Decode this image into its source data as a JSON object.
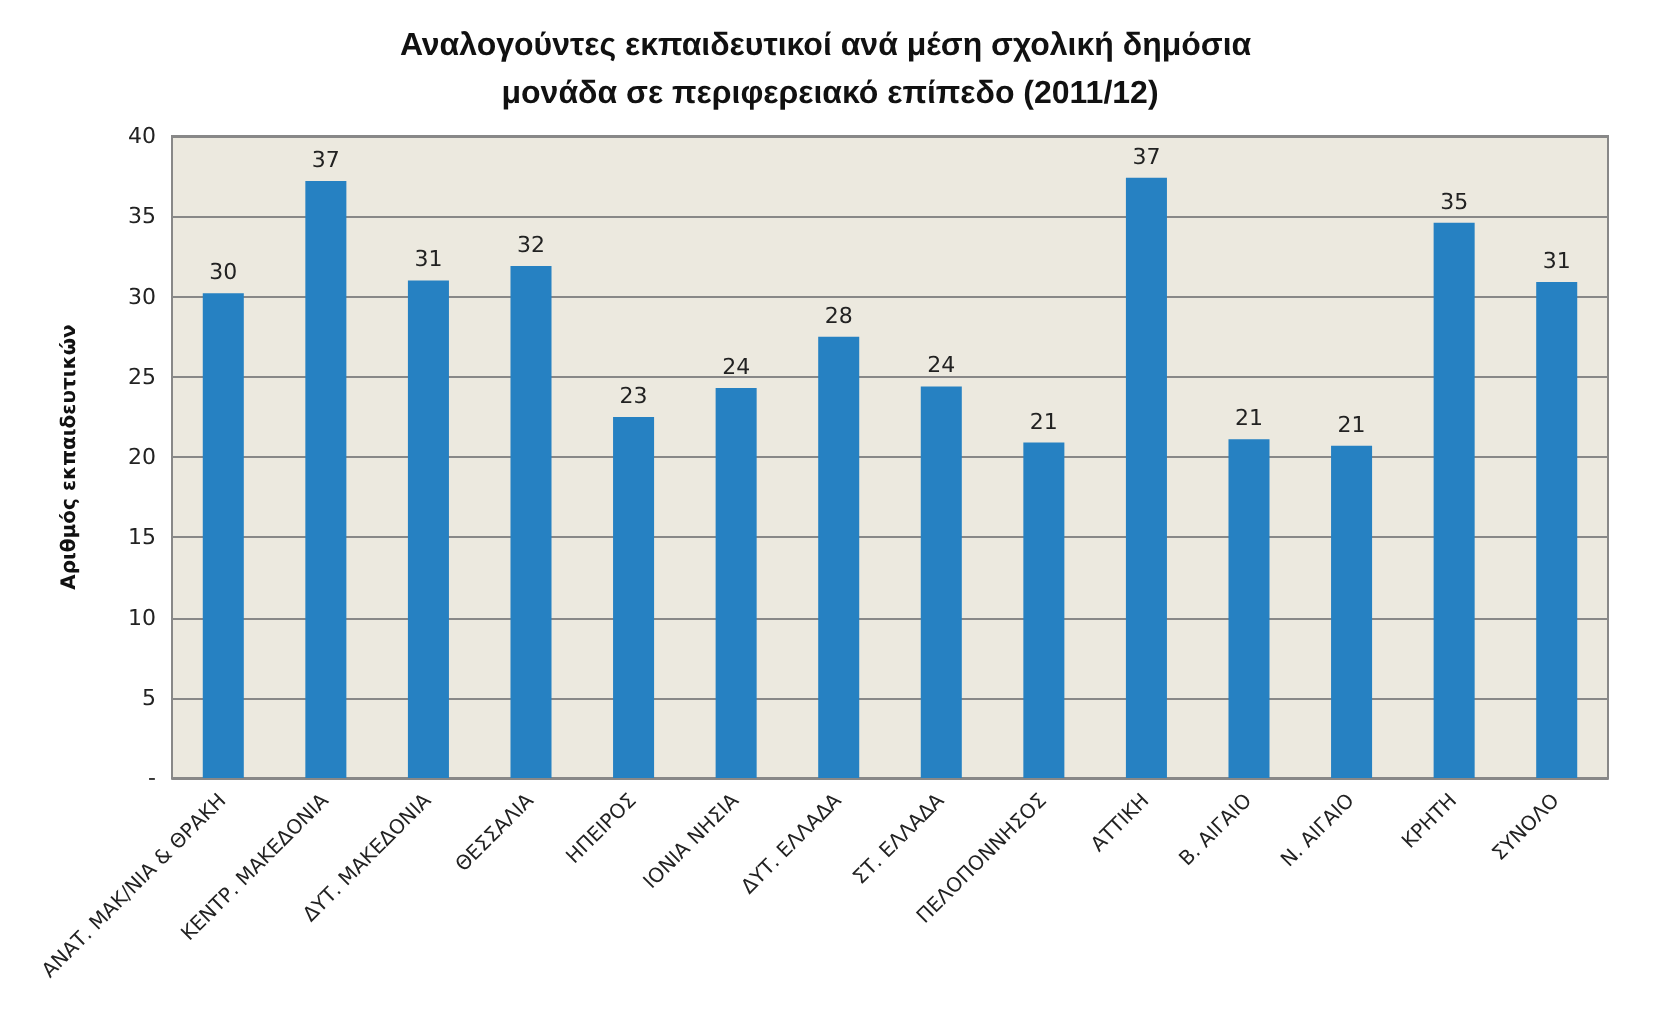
{
  "chart_data": {
    "type": "bar",
    "title": "Αναλογούντες εκπαιδευτικοί ανά μέση σχολική δημόσια μονάδα σε περιφερειακό επίπεδο (2011/12)",
    "ylabel": "Αριθμός εκπαιδευτικών",
    "categories": [
      "ΑΝΑΤ. ΜΑΚ/ΝΙΑ & ΘΡΑΚΗ",
      "ΚΕΝΤΡ. ΜΑΚΕΔΟΝΙΑ",
      "ΔΥΤ. ΜΑΚΕΔΟΝΙΑ",
      "ΘΕΣΣΑΛΙΑ",
      "ΗΠΕΙΡΟΣ",
      "ΙΟΝΙΑ ΝΗΣΙΑ",
      "ΔΥΤ. ΕΛΛΑΔΑ",
      "ΣΤ. ΕΛΛΑΔΑ",
      "ΠΕΛΟΠΟΝΝΗΣΟΣ",
      "ΑΤΤΙΚΗ",
      "Β. ΑΙΓΑΙΟ",
      "Ν. ΑΙΓΑΙΟ",
      "ΚΡΗΤΗ",
      "ΣΥΝΟΛΟ"
    ],
    "values": [
      30.2,
      37.2,
      31.0,
      31.9,
      22.5,
      24.3,
      27.5,
      24.4,
      20.9,
      37.4,
      21.1,
      20.7,
      34.6,
      30.9
    ],
    "value_labels": [
      "30",
      "37",
      "31",
      "32",
      "23",
      "24",
      "28",
      "24",
      "21",
      "37",
      "21",
      "21",
      "35",
      "31"
    ],
    "color": "#2681c2",
    "ylim": [
      0,
      40
    ],
    "yticks": [
      {
        "value": 0,
        "label": "-"
      },
      5,
      10,
      15,
      20,
      25,
      30,
      35,
      40
    ],
    "grid": "y"
  }
}
